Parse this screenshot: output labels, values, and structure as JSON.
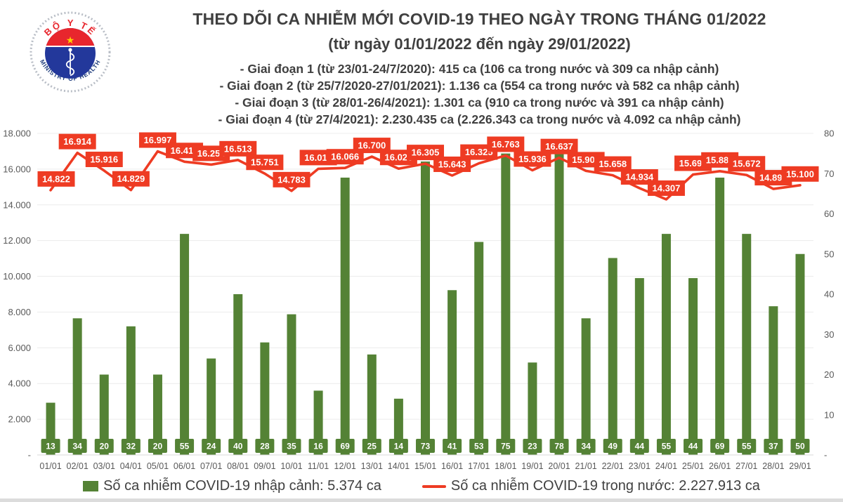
{
  "logo": {
    "top_text": "BỘ Y TẾ",
    "bottom_text": "MINISTRY OF HEALTH"
  },
  "header": {
    "title": "THEO DÕI CA NHIỄM MỚI COVID-19 THEO NGÀY TRONG THÁNG 01/2022",
    "subtitle": "(từ ngày 01/01/2022 đến ngày 29/01/2022)",
    "annotations": [
      "- Giai đoạn 1 (từ 23/01-24/7/2020): 415 ca (106 ca trong nước và 309 ca nhập cảnh)",
      "- Giai đoạn 2 (từ 25/7/2020-27/01/2021): 1.136 ca (554 ca trong nước và 582 ca nhập cảnh)",
      "- Giai đoạn 3 (từ 28/01-26/4/2021): 1.301 ca (910 ca trong nước và 391 ca nhập cảnh)",
      "- Giai đoạn 4 (từ 27/4/2021): 2.230.435 ca (2.226.343 ca trong nước và 4.092 ca nhập cảnh)"
    ]
  },
  "chart_data": {
    "type": "combo",
    "categories": [
      "01/01",
      "02/01",
      "03/01",
      "04/01",
      "05/01",
      "06/01",
      "07/01",
      "08/01",
      "09/01",
      "10/01",
      "11/01",
      "12/01",
      "13/01",
      "14/01",
      "15/01",
      "16/01",
      "17/01",
      "18/01",
      "19/01",
      "20/01",
      "21/01",
      "22/01",
      "23/01",
      "24/01",
      "25/01",
      "26/01",
      "27/01",
      "28/01",
      "29/01"
    ],
    "series": [
      {
        "name": "Số ca nhiễm COVID-19 nhập cảnh",
        "type": "bar",
        "axis": "right",
        "color": "#548235",
        "values": [
          13,
          34,
          20,
          32,
          20,
          55,
          24,
          40,
          28,
          35,
          16,
          69,
          25,
          14,
          73,
          41,
          53,
          75,
          23,
          78,
          34,
          49,
          44,
          55,
          44,
          69,
          55,
          37,
          50
        ],
        "labels": [
          "13",
          "34",
          "20",
          "32",
          "20",
          "55",
          "24",
          "40",
          "28",
          "35",
          "16",
          "69",
          "25",
          "14",
          "73",
          "41",
          "53",
          "75",
          "23",
          "78",
          "34",
          "49",
          "44",
          "55",
          "44",
          "69",
          "55",
          "37",
          "50"
        ]
      },
      {
        "name": "Số ca nhiễm COVID-19 trong nước",
        "type": "line",
        "axis": "left",
        "color": "#ee3b23",
        "values": [
          14822,
          16914,
          15916,
          14829,
          16997,
          16417,
          16254,
          16513,
          15751,
          14783,
          16019,
          16066,
          16700,
          16026,
          16305,
          15643,
          16325,
          16763,
          15936,
          16637,
          15901,
          15658,
          14934,
          14307,
          15699,
          15885,
          15672,
          14892,
          15100
        ],
        "labels": [
          "14.822",
          "16.914",
          "15.916",
          "14.829",
          "16.997",
          "16.417",
          "16.254",
          "16.513",
          "15.751",
          "14.783",
          "16.019",
          "16.066",
          "16.700",
          "16.026",
          "16.305",
          "15.643",
          "16.325",
          "16.763",
          "15.936",
          "16.637",
          "15.901",
          "15.658",
          "14.934",
          "14.307",
          "15.699",
          "15.885",
          "15.672",
          "14.892",
          "15.100"
        ]
      }
    ],
    "left_axis": {
      "min": 0,
      "max": 18000,
      "step": 2000,
      "tick_labels": [
        "-",
        "2.000",
        "4.000",
        "6.000",
        "8.000",
        "10.000",
        "12.000",
        "14.000",
        "16.000",
        "18.000"
      ]
    },
    "right_axis": {
      "min": 0,
      "max": 80,
      "step": 10,
      "tick_labels": [
        "-",
        "10",
        "20",
        "30",
        "40",
        "50",
        "60",
        "70",
        "80"
      ]
    },
    "grid": true,
    "legend_position": "bottom",
    "legend": [
      {
        "label": "Số ca nhiễm COVID-19 nhập cảnh: 5.374 ca",
        "color": "#548235",
        "marker": "square"
      },
      {
        "label": "Số ca nhiễm COVID-19 trong nước: 2.227.913 ca",
        "color": "#ee3b23",
        "marker": "line"
      }
    ]
  }
}
